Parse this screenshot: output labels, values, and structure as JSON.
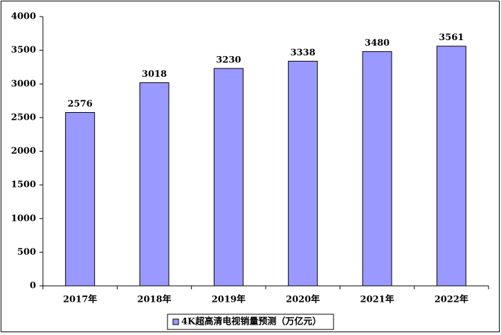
{
  "chart_data": {
    "type": "bar",
    "categories": [
      "2017年",
      "2018年",
      "2019年",
      "2020年",
      "2021年",
      "2022年"
    ],
    "series": [
      {
        "name": "4K超高清电视销量预测（万亿元）",
        "color": "#9999ff",
        "values": [
          2576,
          3018,
          3230,
          3338,
          3480,
          3561
        ]
      }
    ],
    "ylim": [
      0,
      4000
    ],
    "yticks": [
      0,
      500,
      1000,
      1500,
      2000,
      2500,
      3000,
      3500,
      4000
    ],
    "grid": false,
    "legend": "bottom"
  }
}
